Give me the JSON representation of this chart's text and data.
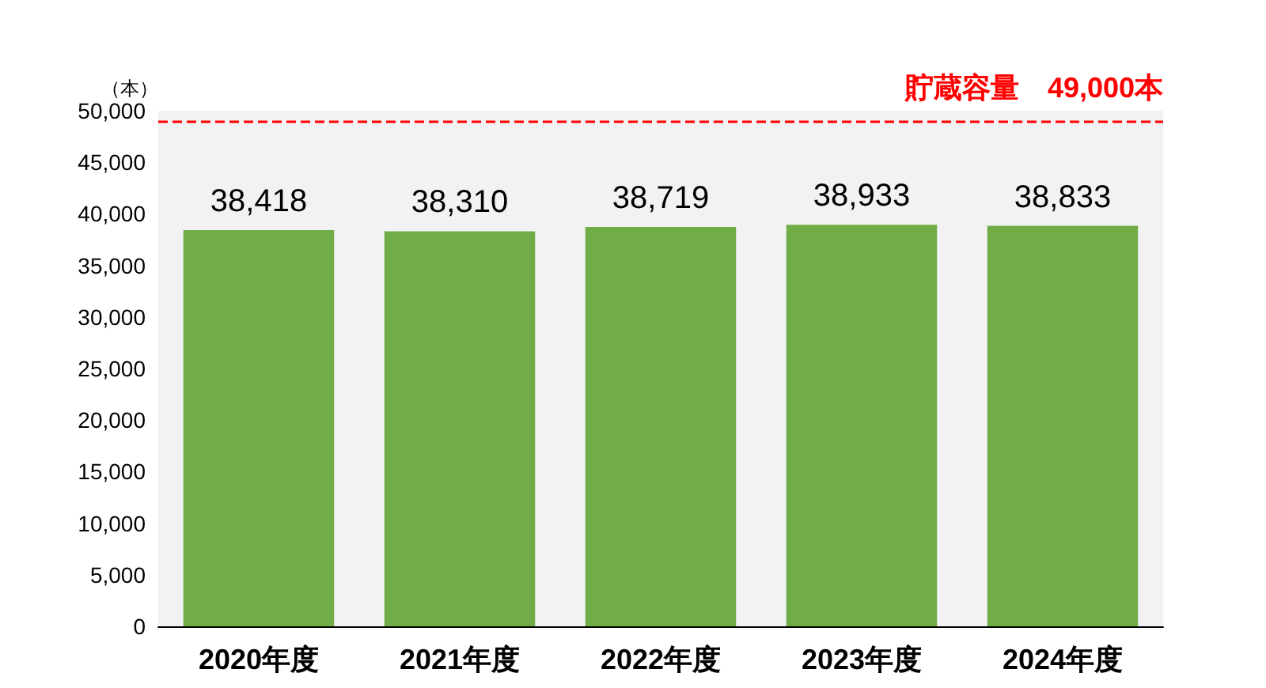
{
  "chart_data": {
    "type": "bar",
    "ylabel": "（本）",
    "categories": [
      "2020年度",
      "2021年度",
      "2022年度",
      "2023年度",
      "2024年度"
    ],
    "values": [
      38418,
      38310,
      38719,
      38933,
      38833
    ],
    "value_labels": [
      "38,418",
      "38,310",
      "38,719",
      "38,933",
      "38,833"
    ],
    "color": "#70ad47",
    "ylim": [
      0,
      50000
    ],
    "yticks": [
      0,
      {
        "value": 5000,
        "label": "5,000"
      },
      {
        "value": 10000,
        "label": "10,000"
      },
      {
        "value": 15000,
        "label": "15,000"
      },
      {
        "value": 20000,
        "label": "20,000"
      },
      {
        "value": 25000,
        "label": "25,000"
      },
      {
        "value": 30000,
        "label": "30,000"
      },
      {
        "value": 35000,
        "label": "35,000"
      },
      {
        "value": 40000,
        "label": "40,000"
      },
      {
        "value": 45000,
        "label": "45,000"
      },
      {
        "value": 50000,
        "label": "50,000"
      }
    ],
    "grid": false,
    "ref_lines": [
      {
        "axis": "y",
        "value": 49000,
        "label": "貯蔵容量　49,000本",
        "color": "#ff0000",
        "line_style": "dashed"
      }
    ]
  }
}
